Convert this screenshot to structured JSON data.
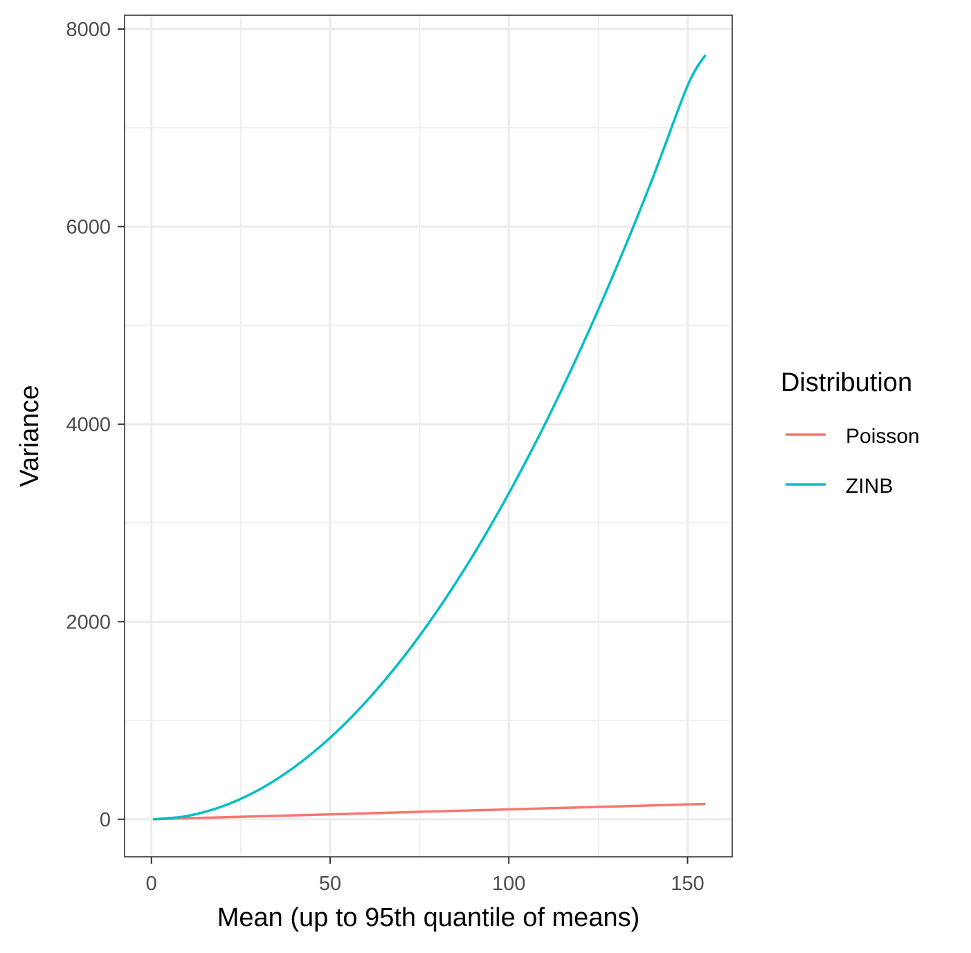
{
  "chart_data": {
    "type": "line",
    "xlabel": "Mean (up to 95th quantile of means)",
    "ylabel": "Variance",
    "xlim": [
      -7.5,
      162.5
    ],
    "ylim": [
      -380,
      8140
    ],
    "x_ticks": [
      0,
      50,
      100,
      150
    ],
    "x_tick_labels": [
      "0",
      "50",
      "100",
      "150"
    ],
    "y_ticks": [
      0,
      2000,
      4000,
      6000,
      8000
    ],
    "y_tick_labels": [
      "0",
      "2000",
      "4000",
      "6000",
      "8000"
    ],
    "x_minor_gridlines": [
      25,
      75,
      125
    ],
    "y_minor_gridlines": [
      1000,
      3000,
      5000,
      7000
    ],
    "grid": true,
    "legend": {
      "title": "Distribution",
      "placement": "right"
    },
    "series": [
      {
        "name": "Poisson",
        "color": "#F8766D",
        "x": [
          0.5,
          20,
          40,
          60,
          80,
          100,
          120,
          140,
          155
        ],
        "y": [
          0.5,
          20,
          40,
          60,
          80,
          100,
          120,
          140,
          155
        ]
      },
      {
        "name": "ZINB",
        "color": "#00BFC4",
        "x": [
          0.5,
          10,
          20,
          30,
          40,
          50,
          60,
          70,
          80,
          90,
          100,
          110,
          120,
          130,
          140,
          150,
          155
        ],
        "y": [
          0,
          33,
          132,
          297,
          528,
          825,
          1188,
          1617,
          2112,
          2673,
          3300,
          3993,
          4752,
          5577,
          6468,
          7425,
          7738
        ]
      }
    ]
  }
}
